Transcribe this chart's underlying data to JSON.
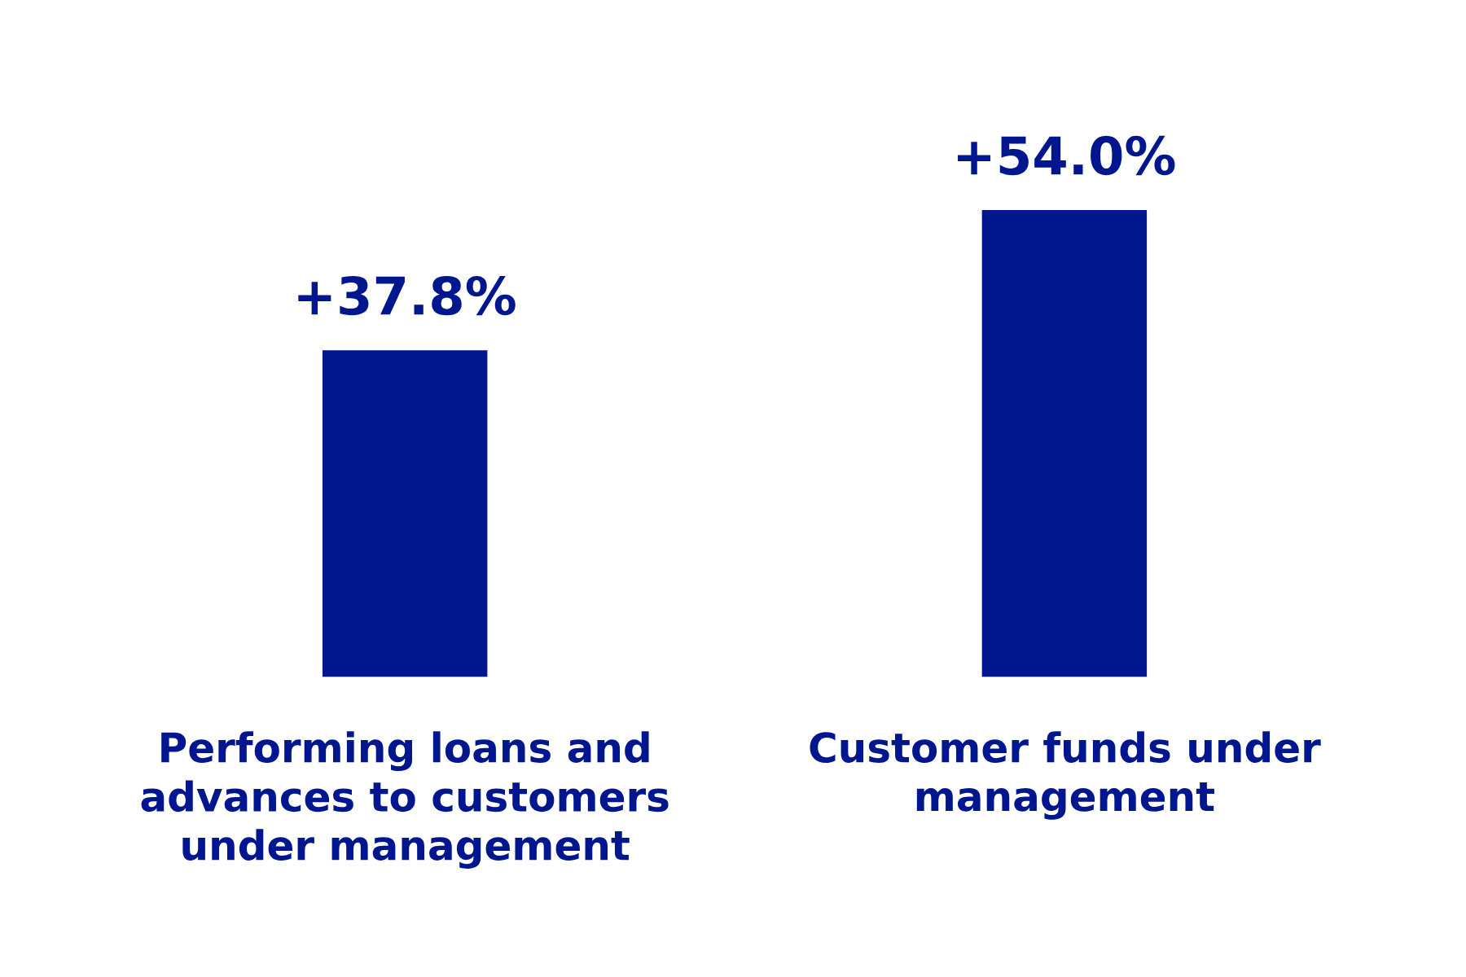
{
  "chart_data": {
    "type": "bar",
    "categories": [
      "Performing loans and\nadvances to customers\nunder management",
      "Customer funds under\nmanagement"
    ],
    "values": [
      37.8,
      54.0
    ],
    "value_labels": [
      "+37.8%",
      "+54.0%"
    ],
    "color": "#00168f"
  }
}
